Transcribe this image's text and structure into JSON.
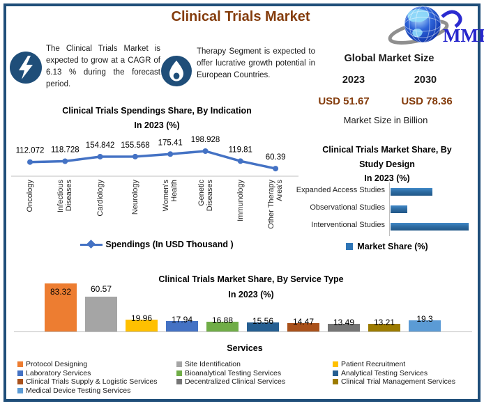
{
  "header": {
    "title": "Clinical Trials Market",
    "title_color": "#843C0C",
    "logo_text": "MMR",
    "logo_color": "#2626CC"
  },
  "callouts": [
    {
      "icon": "lightning-bolt-icon",
      "text": "The Clinical Trials Market is expected to grow at a CAGR of 6.13 % during the forecast period."
    },
    {
      "icon": "flame-icon",
      "text": "Therapy Segment is expected to offer lucrative growth potential in European Countries."
    }
  ],
  "global_market_size": {
    "heading": "Global Market Size",
    "year_start": "2023",
    "year_end": "2030",
    "value_start": "USD 51.67",
    "value_end": "USD 78.36",
    "note": "Market Size in Billion",
    "value_color": "#843C0C"
  },
  "chart_data": [
    {
      "id": "spendings-by-indication",
      "type": "line",
      "title": "Clinical Trials Spendings  Share, By Indication",
      "title_line2": "In 2023 (%)",
      "categories": [
        "Oncology",
        "Infectious\nDiseases",
        "Cardiology",
        "Neurology",
        "Women's\nHealth",
        "Genetic\nDiseases",
        "Immunology",
        "Other Therapy\nArea's"
      ],
      "values": [
        112.072,
        118.728,
        154.842,
        155.568,
        175.41,
        198.928,
        119.81,
        60.39
      ],
      "series_name": "Spendings (In USD Thousand )",
      "line_color": "#4472C4",
      "ylim": [
        0,
        320
      ],
      "grid": false,
      "legend_position": "bottom"
    },
    {
      "id": "share-by-study-design",
      "type": "bar-horizontal",
      "title_lines": [
        "Clinical Trials Market  Share, By",
        "Study Design",
        "In 2023 (%)"
      ],
      "categories": [
        "Expanded Access Studies",
        "Observational Studies",
        "Interventional Studies"
      ],
      "values_pct_of_max": [
        54,
        21,
        100
      ],
      "legend": "Market Share (%)",
      "bar_color": "#2E75B6",
      "legend_position": "bottom"
    },
    {
      "id": "share-by-service-type",
      "type": "bar",
      "title_lines": [
        "Clinical Trials Market  Share, By Service Type",
        "In 2023 (%)"
      ],
      "xlabel": "Services",
      "categories": [
        "Protocol Designing",
        "Site Identification",
        "Patient Recruitment",
        "Laboratory Services",
        "Bioanalytical Testing Services",
        "Analytical Testing Services",
        "Clinical Trials Supply & Logistic Services",
        "Decentralized Clinical Services",
        "Clinical Trial Management Services",
        "Medical Device Testing Services"
      ],
      "values": [
        83.32,
        60.57,
        19.96,
        17.94,
        16.88,
        15.56,
        14.47,
        13.49,
        13.21,
        19.3
      ],
      "colors": [
        "#ED7D31",
        "#A5A5A5",
        "#FFC000",
        "#4472C4",
        "#70AD47",
        "#255E91",
        "#A9511B",
        "#757575",
        "#9C7B00",
        "#5B9BD5"
      ],
      "legend_position": "bottom"
    }
  ],
  "frame_color": "#1F4E79"
}
